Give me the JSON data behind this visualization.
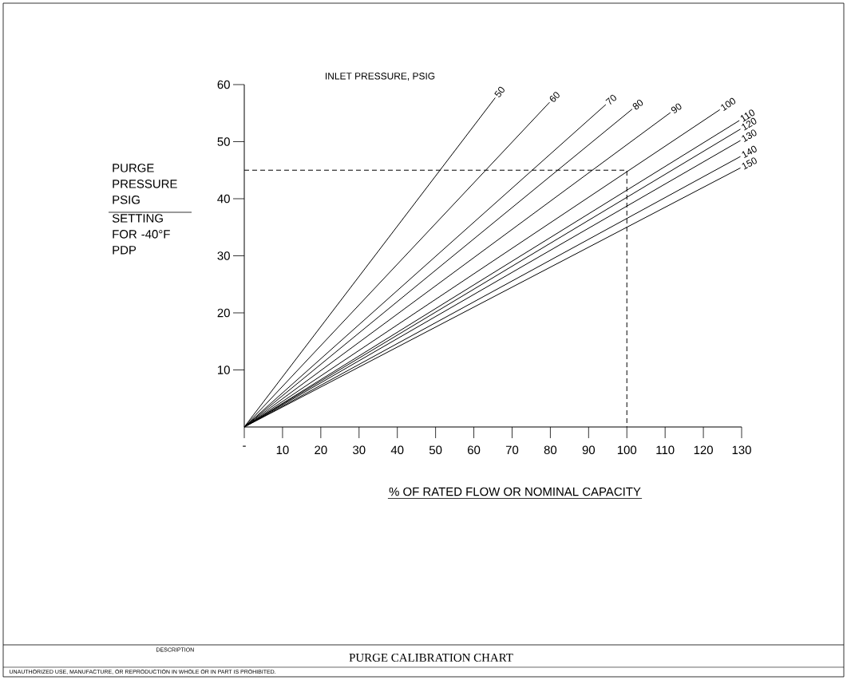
{
  "chart_data": {
    "type": "line",
    "title": "PURGE CALIBRATION CHART",
    "xlabel": "% OF RATED FLOW OR NOMINAL CAPACITY",
    "ylabel": "PURGE PRESSURE PSIG",
    "legend_title": "INLET PRESSURE, PSIG",
    "annotations": [
      "SETTING FOR -40°F PDP",
      "DESCRIPTION",
      "UNAUTHORIZED USE, MANUFACTURE, OR REPRODUCTION IN WHOLE OR IN PART IS PROHIBITED."
    ],
    "xlim": [
      0,
      130
    ],
    "ylim": [
      0,
      60
    ],
    "xticks": [
      {
        "value": 0,
        "label": "-"
      },
      10,
      20,
      30,
      40,
      50,
      60,
      70,
      80,
      90,
      100,
      110,
      120,
      130
    ],
    "yticks": [
      10,
      20,
      30,
      40,
      50,
      60
    ],
    "series": [
      {
        "name": "50",
        "color": "#000000",
        "x": [
          0,
          65.6
        ],
        "values": [
          0,
          57.7
        ]
      },
      {
        "name": "60",
        "color": "#000000",
        "x": [
          0,
          79.8
        ],
        "values": [
          0,
          56.9
        ]
      },
      {
        "name": "70",
        "color": "#000000",
        "x": [
          0,
          94.5
        ],
        "values": [
          0,
          56.5
        ]
      },
      {
        "name": "80",
        "color": "#000000",
        "x": [
          0,
          101.4
        ],
        "values": [
          0,
          55.7
        ]
      },
      {
        "name": "90",
        "color": "#000000",
        "x": [
          0,
          111.4
        ],
        "values": [
          0,
          55.1
        ]
      },
      {
        "name": "100",
        "color": "#000000",
        "x": [
          0,
          124.3
        ],
        "values": [
          0,
          55.6
        ]
      },
      {
        "name": "110",
        "color": "#000000",
        "x": [
          0,
          129.4
        ],
        "values": [
          0,
          53.7
        ]
      },
      {
        "name": "120",
        "color": "#000000",
        "x": [
          0,
          129.7
        ],
        "values": [
          0,
          52.2
        ]
      },
      {
        "name": "130",
        "color": "#000000",
        "x": [
          0,
          129.7
        ],
        "values": [
          0,
          50.2
        ]
      },
      {
        "name": "140",
        "color": "#000000",
        "x": [
          0,
          129.7
        ],
        "values": [
          0,
          47.4
        ]
      },
      {
        "name": "150",
        "color": "#000000",
        "x": [
          0,
          129.7
        ],
        "values": [
          0,
          45.4
        ]
      },
      {
        "color": "#000000",
        "line_style": "dashed",
        "x": [
          0,
          100,
          100
        ],
        "values": [
          45,
          45,
          0
        ]
      }
    ]
  }
}
